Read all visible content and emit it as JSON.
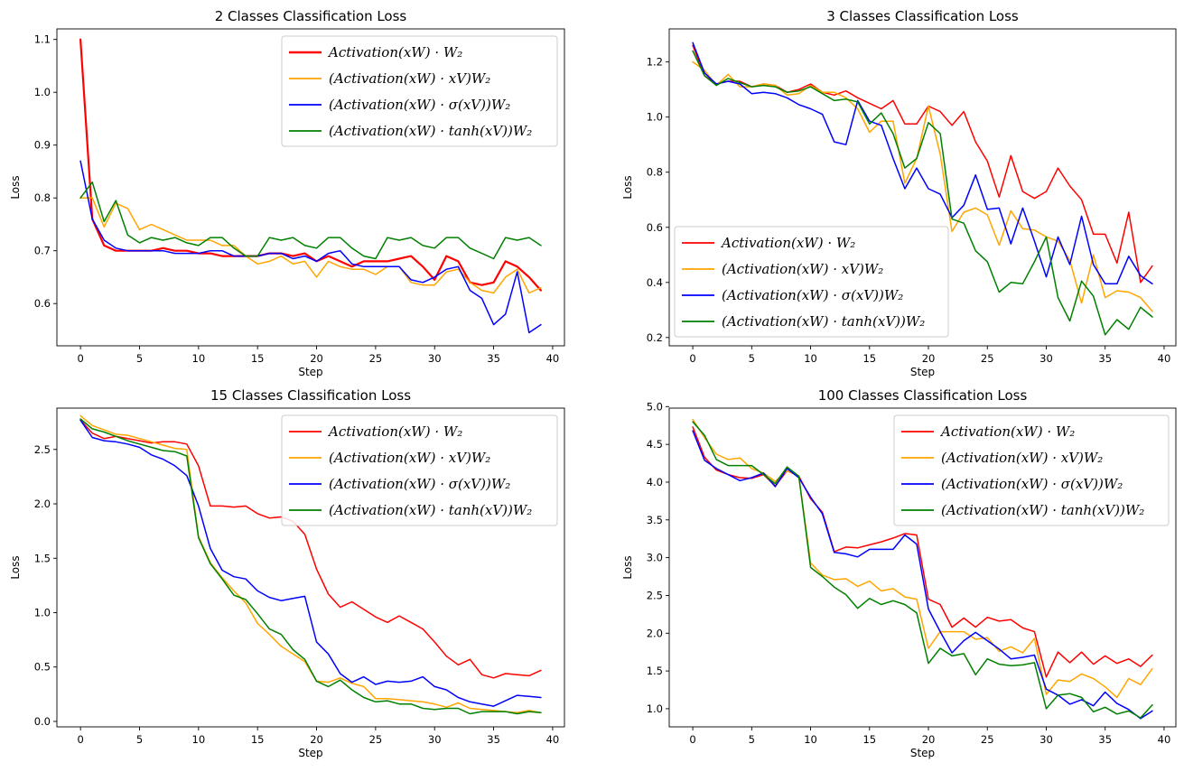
{
  "chart_data": [
    {
      "type": "line",
      "title": "2 Classes Classification Loss",
      "xlabel": "Step",
      "ylabel": "Loss",
      "xlim": [
        -2,
        41
      ],
      "ylim": [
        0.52,
        1.12
      ],
      "xticks": [
        0,
        5,
        10,
        15,
        20,
        25,
        30,
        35,
        40
      ],
      "yticks": [
        0.6,
        0.7,
        0.8,
        0.9,
        1.0,
        1.1
      ],
      "ytick_labels": [
        "0.6",
        "0.7",
        "0.8",
        "0.9",
        "1.0",
        "1.1"
      ],
      "legend_position": "top-right",
      "x": [
        0,
        1,
        2,
        3,
        4,
        5,
        6,
        7,
        8,
        9,
        10,
        11,
        12,
        13,
        14,
        15,
        16,
        17,
        18,
        19,
        20,
        21,
        22,
        23,
        24,
        25,
        26,
        27,
        28,
        29,
        30,
        31,
        32,
        33,
        34,
        35,
        36,
        37,
        38,
        39
      ],
      "series": [
        {
          "name": "Activation(xW) · W₂",
          "color": "#ff0000",
          "width": 2.2,
          "values": [
            1.1,
            0.76,
            0.71,
            0.7,
            0.7,
            0.7,
            0.7,
            0.705,
            0.7,
            0.7,
            0.695,
            0.695,
            0.69,
            0.69,
            0.69,
            0.69,
            0.695,
            0.695,
            0.69,
            0.695,
            0.68,
            0.69,
            0.68,
            0.67,
            0.68,
            0.68,
            0.68,
            0.685,
            0.69,
            0.67,
            0.645,
            0.69,
            0.68,
            0.64,
            0.635,
            0.64,
            0.68,
            0.67,
            0.65,
            0.625
          ]
        },
        {
          "name": "(Activation(xW) · xV)W₂",
          "color": "#ffa500",
          "width": 1.5,
          "values": [
            0.8,
            0.8,
            0.745,
            0.79,
            0.78,
            0.74,
            0.75,
            0.74,
            0.73,
            0.72,
            0.72,
            0.72,
            0.71,
            0.71,
            0.69,
            0.675,
            0.68,
            0.69,
            0.675,
            0.68,
            0.65,
            0.68,
            0.67,
            0.665,
            0.665,
            0.655,
            0.67,
            0.67,
            0.64,
            0.635,
            0.635,
            0.66,
            0.665,
            0.64,
            0.625,
            0.62,
            0.65,
            0.665,
            0.62,
            0.63
          ]
        },
        {
          "name": "(Activation(xW) · σ(xV))W₂",
          "color": "#0000ff",
          "width": 1.5,
          "values": [
            0.87,
            0.76,
            0.72,
            0.705,
            0.7,
            0.7,
            0.7,
            0.7,
            0.695,
            0.695,
            0.695,
            0.7,
            0.7,
            0.69,
            0.69,
            0.69,
            0.695,
            0.695,
            0.685,
            0.69,
            0.68,
            0.695,
            0.7,
            0.675,
            0.67,
            0.67,
            0.67,
            0.67,
            0.645,
            0.64,
            0.65,
            0.665,
            0.67,
            0.625,
            0.61,
            0.56,
            0.58,
            0.66,
            0.545,
            0.56
          ]
        },
        {
          "name": "(Activation(xW) · tanh(xV))W₂",
          "color": "#008000",
          "width": 1.5,
          "values": [
            0.8,
            0.83,
            0.755,
            0.795,
            0.73,
            0.715,
            0.725,
            0.72,
            0.725,
            0.715,
            0.71,
            0.725,
            0.725,
            0.705,
            0.69,
            0.69,
            0.725,
            0.72,
            0.725,
            0.71,
            0.705,
            0.725,
            0.725,
            0.705,
            0.69,
            0.685,
            0.725,
            0.72,
            0.725,
            0.71,
            0.705,
            0.725,
            0.725,
            0.705,
            0.695,
            0.685,
            0.725,
            0.72,
            0.725,
            0.71
          ]
        }
      ]
    },
    {
      "type": "line",
      "title": "3 Classes Classification Loss",
      "xlabel": "Step",
      "ylabel": "Loss",
      "xlim": [
        -2,
        41
      ],
      "ylim": [
        0.17,
        1.32
      ],
      "xticks": [
        0,
        5,
        10,
        15,
        20,
        25,
        30,
        35,
        40
      ],
      "yticks": [
        0.2,
        0.4,
        0.6,
        0.8,
        1.0,
        1.2
      ],
      "ytick_labels": [
        "0.2",
        "0.4",
        "0.6",
        "0.8",
        "1.0",
        "1.2"
      ],
      "legend_position": "bottom-left",
      "x": [
        0,
        1,
        2,
        3,
        4,
        5,
        6,
        7,
        8,
        9,
        10,
        11,
        12,
        13,
        14,
        15,
        16,
        17,
        18,
        19,
        20,
        21,
        22,
        23,
        24,
        25,
        26,
        27,
        28,
        29,
        30,
        31,
        32,
        33,
        34,
        35,
        36,
        37,
        38,
        39
      ],
      "series": [
        {
          "name": "Activation(xW) · W₂",
          "color": "#ff0000",
          "width": 1.5,
          "values": [
            1.26,
            1.15,
            1.12,
            1.13,
            1.13,
            1.11,
            1.12,
            1.115,
            1.09,
            1.1,
            1.12,
            1.09,
            1.08,
            1.095,
            1.07,
            1.05,
            1.03,
            1.06,
            0.975,
            0.975,
            1.04,
            1.02,
            0.97,
            1.02,
            0.91,
            0.84,
            0.71,
            0.86,
            0.73,
            0.705,
            0.73,
            0.815,
            0.75,
            0.7,
            0.575,
            0.575,
            0.47,
            0.655,
            0.4,
            0.46
          ]
        },
        {
          "name": "(Activation(xW) · xV)W₂",
          "color": "#ffa500",
          "width": 1.5,
          "values": [
            1.2,
            1.17,
            1.115,
            1.155,
            1.11,
            1.11,
            1.12,
            1.115,
            1.08,
            1.085,
            1.115,
            1.09,
            1.09,
            1.07,
            1.03,
            0.945,
            0.985,
            0.985,
            0.76,
            0.85,
            1.04,
            0.865,
            0.585,
            0.655,
            0.67,
            0.645,
            0.535,
            0.66,
            0.595,
            0.59,
            0.565,
            0.55,
            0.48,
            0.325,
            0.5,
            0.345,
            0.37,
            0.365,
            0.345,
            0.295
          ]
        },
        {
          "name": "(Activation(xW) · σ(xV))W₂",
          "color": "#0000ff",
          "width": 1.5,
          "values": [
            1.27,
            1.16,
            1.12,
            1.13,
            1.12,
            1.085,
            1.09,
            1.085,
            1.07,
            1.045,
            1.03,
            1.01,
            0.91,
            0.9,
            1.06,
            0.985,
            0.97,
            0.85,
            0.74,
            0.815,
            0.74,
            0.72,
            0.635,
            0.68,
            0.79,
            0.665,
            0.67,
            0.54,
            0.67,
            0.55,
            0.42,
            0.565,
            0.465,
            0.64,
            0.465,
            0.395,
            0.395,
            0.495,
            0.425,
            0.395
          ]
        },
        {
          "name": "(Activation(xW) · tanh(xV))W₂",
          "color": "#008000",
          "width": 1.5,
          "values": [
            1.24,
            1.15,
            1.115,
            1.14,
            1.125,
            1.11,
            1.115,
            1.11,
            1.09,
            1.095,
            1.11,
            1.085,
            1.06,
            1.065,
            1.055,
            0.975,
            1.015,
            0.94,
            0.815,
            0.85,
            0.98,
            0.94,
            0.63,
            0.615,
            0.515,
            0.475,
            0.365,
            0.4,
            0.395,
            0.475,
            0.565,
            0.345,
            0.26,
            0.405,
            0.35,
            0.21,
            0.265,
            0.23,
            0.31,
            0.275
          ]
        }
      ]
    },
    {
      "type": "line",
      "title": "15 Classes Classification Loss",
      "xlabel": "Step",
      "ylabel": "Loss",
      "xlim": [
        -2,
        41
      ],
      "ylim": [
        -0.05,
        2.88
      ],
      "xticks": [
        0,
        5,
        10,
        15,
        20,
        25,
        30,
        35,
        40
      ],
      "yticks": [
        0,
        0.5,
        1.0,
        1.5,
        2.0,
        2.5
      ],
      "ytick_labels": [
        "0.0",
        "0.5",
        "1.0",
        "1.5",
        "2.0",
        "2.5"
      ],
      "legend_position": "top-right",
      "x": [
        0,
        1,
        2,
        3,
        4,
        5,
        6,
        7,
        8,
        9,
        10,
        11,
        12,
        13,
        14,
        15,
        16,
        17,
        18,
        19,
        20,
        21,
        22,
        23,
        24,
        25,
        26,
        27,
        28,
        29,
        30,
        31,
        32,
        33,
        34,
        35,
        36,
        37,
        38,
        39
      ],
      "series": [
        {
          "name": "Activation(xW) · W₂",
          "color": "#ff0000",
          "width": 1.5,
          "values": [
            2.77,
            2.65,
            2.6,
            2.62,
            2.6,
            2.58,
            2.56,
            2.57,
            2.57,
            2.55,
            2.35,
            1.98,
            1.98,
            1.97,
            1.98,
            1.91,
            1.87,
            1.88,
            1.84,
            1.72,
            1.4,
            1.17,
            1.05,
            1.1,
            1.03,
            0.96,
            0.91,
            0.97,
            0.91,
            0.85,
            0.73,
            0.6,
            0.52,
            0.57,
            0.43,
            0.4,
            0.44,
            0.43,
            0.42,
            0.47
          ]
        },
        {
          "name": "(Activation(xW) · xV)W₂",
          "color": "#ffa500",
          "width": 1.5,
          "values": [
            2.81,
            2.72,
            2.68,
            2.64,
            2.63,
            2.6,
            2.57,
            2.54,
            2.51,
            2.5,
            1.7,
            1.46,
            1.32,
            1.2,
            1.09,
            0.9,
            0.8,
            0.69,
            0.62,
            0.55,
            0.37,
            0.36,
            0.4,
            0.35,
            0.32,
            0.21,
            0.21,
            0.2,
            0.19,
            0.18,
            0.16,
            0.13,
            0.17,
            0.12,
            0.11,
            0.1,
            0.09,
            0.08,
            0.1,
            0.08
          ]
        },
        {
          "name": "(Activation(xW) · σ(xV))W₂",
          "color": "#0000ff",
          "width": 1.5,
          "values": [
            2.77,
            2.61,
            2.58,
            2.57,
            2.55,
            2.52,
            2.45,
            2.41,
            2.35,
            2.26,
            1.98,
            1.59,
            1.39,
            1.33,
            1.31,
            1.2,
            1.14,
            1.11,
            1.13,
            1.15,
            0.73,
            0.62,
            0.44,
            0.36,
            0.41,
            0.34,
            0.37,
            0.36,
            0.37,
            0.41,
            0.32,
            0.29,
            0.22,
            0.18,
            0.16,
            0.14,
            0.19,
            0.24,
            0.23,
            0.22
          ]
        },
        {
          "name": "(Activation(xW) · tanh(xV))W₂",
          "color": "#008000",
          "width": 1.5,
          "values": [
            2.78,
            2.69,
            2.66,
            2.62,
            2.58,
            2.55,
            2.52,
            2.49,
            2.48,
            2.44,
            1.69,
            1.45,
            1.31,
            1.16,
            1.12,
            0.99,
            0.85,
            0.8,
            0.66,
            0.57,
            0.37,
            0.32,
            0.38,
            0.29,
            0.22,
            0.18,
            0.19,
            0.16,
            0.16,
            0.12,
            0.11,
            0.12,
            0.12,
            0.07,
            0.09,
            0.09,
            0.09,
            0.07,
            0.09,
            0.08
          ]
        }
      ]
    },
    {
      "type": "line",
      "title": "100 Classes Classification Loss",
      "xlabel": "Step",
      "ylabel": "Loss",
      "xlim": [
        -2,
        41
      ],
      "ylim": [
        0.76,
        4.98
      ],
      "xticks": [
        0,
        5,
        10,
        15,
        20,
        25,
        30,
        35,
        40
      ],
      "yticks": [
        1.0,
        1.5,
        2.0,
        2.5,
        3.0,
        3.5,
        4.0,
        4.5,
        5.0
      ],
      "ytick_labels": [
        "1.0",
        "1.5",
        "2.0",
        "2.5",
        "3.0",
        "3.5",
        "4.0",
        "4.5",
        "5.0"
      ],
      "legend_position": "top-right",
      "x": [
        0,
        1,
        2,
        3,
        4,
        5,
        6,
        7,
        8,
        9,
        10,
        11,
        12,
        13,
        14,
        15,
        16,
        17,
        18,
        19,
        20,
        21,
        22,
        23,
        24,
        25,
        26,
        27,
        28,
        29,
        30,
        31,
        32,
        33,
        34,
        35,
        36,
        37,
        38,
        39
      ],
      "series": [
        {
          "name": "Activation(xW) · W₂",
          "color": "#ff0000",
          "width": 1.5,
          "values": [
            4.73,
            4.33,
            4.16,
            4.1,
            4.06,
            4.05,
            4.1,
            3.95,
            4.15,
            4.08,
            3.78,
            3.6,
            3.08,
            3.14,
            3.13,
            3.17,
            3.21,
            3.26,
            3.32,
            3.3,
            2.45,
            2.38,
            2.08,
            2.2,
            2.08,
            2.21,
            2.16,
            2.18,
            2.07,
            2.02,
            1.42,
            1.75,
            1.61,
            1.75,
            1.59,
            1.7,
            1.6,
            1.66,
            1.56,
            1.71
          ]
        },
        {
          "name": "(Activation(xW) · xV)W₂",
          "color": "#ffa500",
          "width": 1.5,
          "values": [
            4.83,
            4.59,
            4.37,
            4.3,
            4.32,
            4.18,
            4.12,
            4.01,
            4.15,
            4.08,
            2.93,
            2.77,
            2.71,
            2.72,
            2.62,
            2.69,
            2.56,
            2.59,
            2.48,
            2.45,
            1.8,
            2.02,
            2.02,
            2.02,
            1.92,
            1.94,
            1.76,
            1.82,
            1.74,
            1.93,
            1.19,
            1.38,
            1.36,
            1.46,
            1.4,
            1.29,
            1.15,
            1.4,
            1.32,
            1.53
          ]
        },
        {
          "name": "(Activation(xW) · σ(xV))W₂",
          "color": "#0000ff",
          "width": 1.5,
          "values": [
            4.68,
            4.29,
            4.18,
            4.1,
            4.02,
            4.06,
            4.12,
            3.94,
            4.18,
            4.06,
            3.8,
            3.58,
            3.07,
            3.05,
            3.01,
            3.11,
            3.11,
            3.11,
            3.3,
            3.18,
            2.32,
            2.02,
            1.74,
            1.9,
            2.01,
            1.9,
            1.79,
            1.66,
            1.68,
            1.71,
            1.26,
            1.18,
            1.06,
            1.12,
            1.04,
            1.22,
            1.07,
            0.99,
            0.87,
            0.97
          ]
        },
        {
          "name": "(Activation(xW) · tanh(xV))W₂",
          "color": "#008000",
          "width": 1.5,
          "values": [
            4.8,
            4.62,
            4.3,
            4.22,
            4.22,
            4.22,
            4.1,
            3.98,
            4.2,
            4.08,
            2.87,
            2.75,
            2.61,
            2.51,
            2.33,
            2.46,
            2.38,
            2.43,
            2.38,
            2.27,
            1.6,
            1.8,
            1.7,
            1.73,
            1.45,
            1.66,
            1.59,
            1.57,
            1.58,
            1.61,
            1.0,
            1.18,
            1.2,
            1.15,
            0.96,
            1.02,
            0.93,
            0.97,
            0.88,
            1.05
          ]
        }
      ]
    }
  ]
}
